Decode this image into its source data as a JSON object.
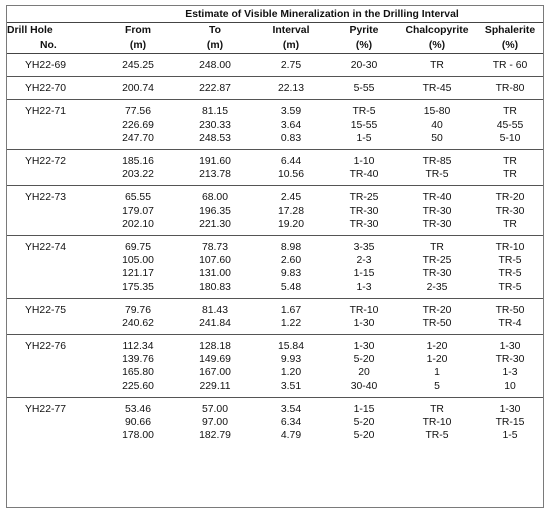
{
  "title": "Estimate of Visible Mineralization in the Drilling Interval",
  "headers": {
    "hole": [
      "Drill Hole",
      "No."
    ],
    "from": [
      "From",
      "(m)"
    ],
    "to": [
      "To",
      "(m)"
    ],
    "interval": [
      "Interval",
      "(m)"
    ],
    "pyrite": [
      "Pyrite",
      "(%)"
    ],
    "chalcopyrite": [
      "Chalcopyrite",
      "(%)"
    ],
    "sphalerite": [
      "Sphalerite",
      "(%)"
    ]
  },
  "groups": [
    {
      "hole": "YH22-69",
      "rows": [
        [
          "245.25",
          "248.00",
          "2.75",
          "20-30",
          "TR",
          "TR - 60"
        ]
      ]
    },
    {
      "hole": "YH22-70",
      "rows": [
        [
          "200.74",
          "222.87",
          "22.13",
          "5-55",
          "TR-45",
          "TR-80"
        ]
      ]
    },
    {
      "hole": "YH22-71",
      "rows": [
        [
          "77.56",
          "81.15",
          "3.59",
          "TR-5",
          "15-80",
          "TR"
        ],
        [
          "226.69",
          "230.33",
          "3.64",
          "15-55",
          "40",
          "45-55"
        ],
        [
          "247.70",
          "248.53",
          "0.83",
          "1-5",
          "50",
          "5-10"
        ]
      ]
    },
    {
      "hole": "YH22-72",
      "rows": [
        [
          "185.16",
          "191.60",
          "6.44",
          "1-10",
          "TR-85",
          "TR"
        ],
        [
          "203.22",
          "213.78",
          "10.56",
          "TR-40",
          "TR-5",
          "TR"
        ]
      ]
    },
    {
      "hole": "YH22-73",
      "rows": [
        [
          "65.55",
          "68.00",
          "2.45",
          "TR-25",
          "TR-40",
          "TR-20"
        ],
        [
          "179.07",
          "196.35",
          "17.28",
          "TR-30",
          "TR-30",
          "TR-30"
        ],
        [
          "202.10",
          "221.30",
          "19.20",
          "TR-30",
          "TR-30",
          "TR"
        ]
      ]
    },
    {
      "hole": "YH22-74",
      "rows": [
        [
          "69.75",
          "78.73",
          "8.98",
          "3-35",
          "TR",
          "TR-10"
        ],
        [
          "105.00",
          "107.60",
          "2.60",
          "2-3",
          "TR-25",
          "TR-5"
        ],
        [
          "121.17",
          "131.00",
          "9.83",
          "1-15",
          "TR-30",
          "TR-5"
        ],
        [
          "175.35",
          "180.83",
          "5.48",
          "1-3",
          "2-35",
          "TR-5"
        ]
      ]
    },
    {
      "hole": "YH22-75",
      "rows": [
        [
          "79.76",
          "81.43",
          "1.67",
          "TR-10",
          "TR-20",
          "TR-50"
        ],
        [
          "240.62",
          "241.84",
          "1.22",
          "1-30",
          "TR-50",
          "TR-4"
        ]
      ]
    },
    {
      "hole": "YH22-76",
      "rows": [
        [
          "112.34",
          "128.18",
          "15.84",
          "1-30",
          "1-20",
          "1-30"
        ],
        [
          "139.76",
          "149.69",
          "9.93",
          "5-20",
          "1-20",
          "TR-30"
        ],
        [
          "165.80",
          "167.00",
          "1.20",
          "20",
          "1",
          "1-3"
        ],
        [
          "225.60",
          "229.11",
          "3.51",
          "30-40",
          "5",
          "10"
        ]
      ]
    },
    {
      "hole": "YH22-77",
      "rows": [
        [
          "53.46",
          "57.00",
          "3.54",
          "1-15",
          "TR",
          "1-30"
        ],
        [
          "90.66",
          "97.00",
          "6.34",
          "5-20",
          "TR-10",
          "TR-15"
        ],
        [
          "178.00",
          "182.79",
          "4.79",
          "5-20",
          "TR-5",
          "1-5"
        ]
      ]
    }
  ]
}
